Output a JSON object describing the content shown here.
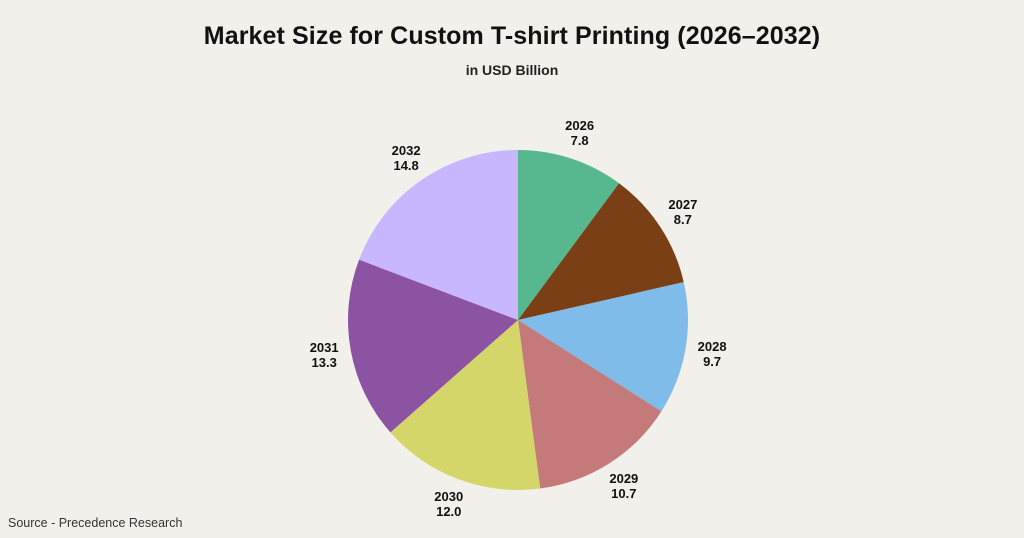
{
  "chart_data": {
    "type": "pie",
    "title": "Market Size for Custom T-shirt Printing (2026–2032)",
    "subtitle": "in USD Billion",
    "categories": [
      "2026",
      "2027",
      "2028",
      "2029",
      "2030",
      "2031",
      "2032"
    ],
    "values": [
      7.8,
      8.7,
      9.7,
      10.7,
      12.0,
      13.3,
      14.8
    ],
    "colors": [
      "#57b890",
      "#7b3f16",
      "#80bce9",
      "#c47a7a",
      "#d5d66a",
      "#8c53a3",
      "#c8b6fe"
    ],
    "start_angle": "12 o'clock",
    "direction": "clockwise",
    "legend": "none (data labels outside slices)"
  },
  "source": "Source - Precedence Research"
}
